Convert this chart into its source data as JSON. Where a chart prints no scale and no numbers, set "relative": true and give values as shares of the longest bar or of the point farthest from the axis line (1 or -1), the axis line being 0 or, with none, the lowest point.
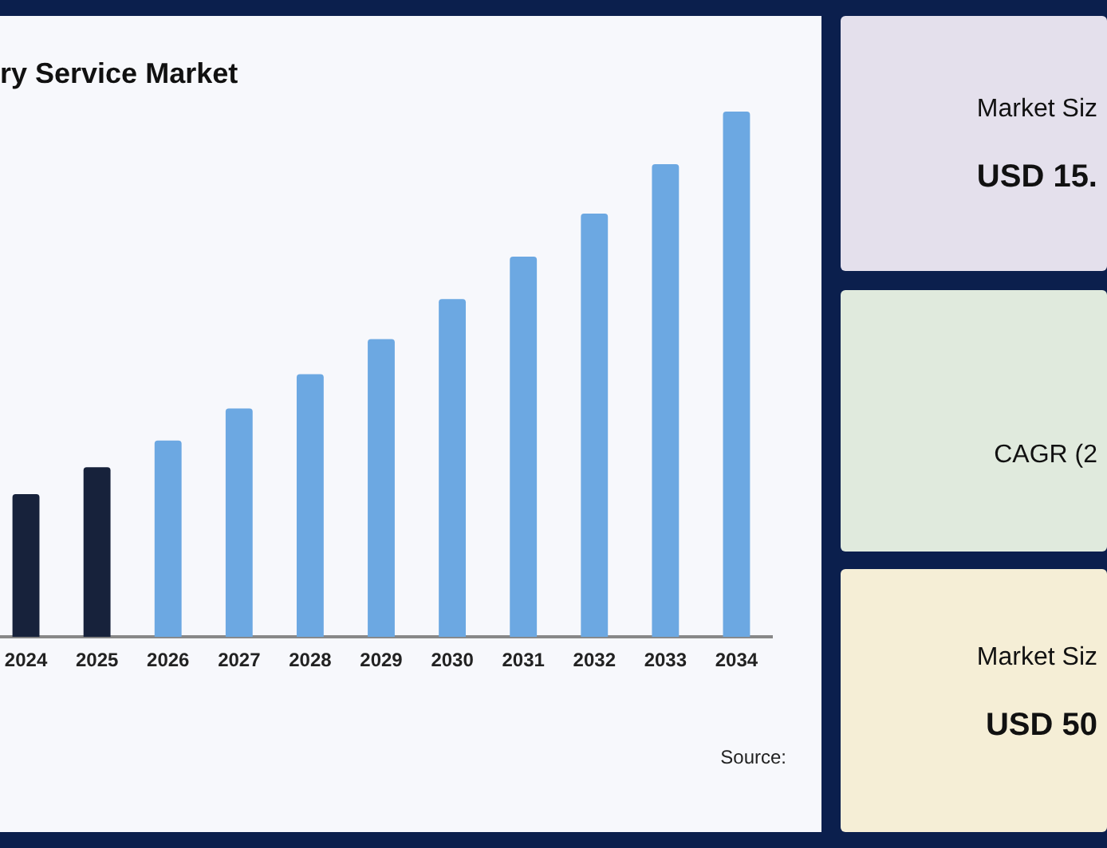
{
  "chart_data": [
    {
      "type": "bar",
      "title": "ry Service Market",
      "relative": true,
      "categories": [
        "2024",
        "2025",
        "2026",
        "2027",
        "2028",
        "2029",
        "2030",
        "2031",
        "2032",
        "2033",
        "2034"
      ],
      "values": [
        0.272,
        0.323,
        0.374,
        0.435,
        0.5,
        0.567,
        0.643,
        0.724,
        0.806,
        0.9,
        1
      ],
      "colors": [
        "#17223b",
        "#17223b",
        "#6ca8e2",
        "#6ca8e2",
        "#6ca8e2",
        "#6ca8e2",
        "#6ca8e2",
        "#6ca8e2",
        "#6ca8e2",
        "#6ca8e2",
        "#6ca8e2"
      ],
      "grid": false,
      "legend": false,
      "annotations": [
        "Source:"
      ]
    },
    {
      "type": "other",
      "annotations": [
        "Market Siz",
        "USD 15.",
        "CAGR (2",
        "Market Siz",
        "USD 50"
      ]
    }
  ]
}
